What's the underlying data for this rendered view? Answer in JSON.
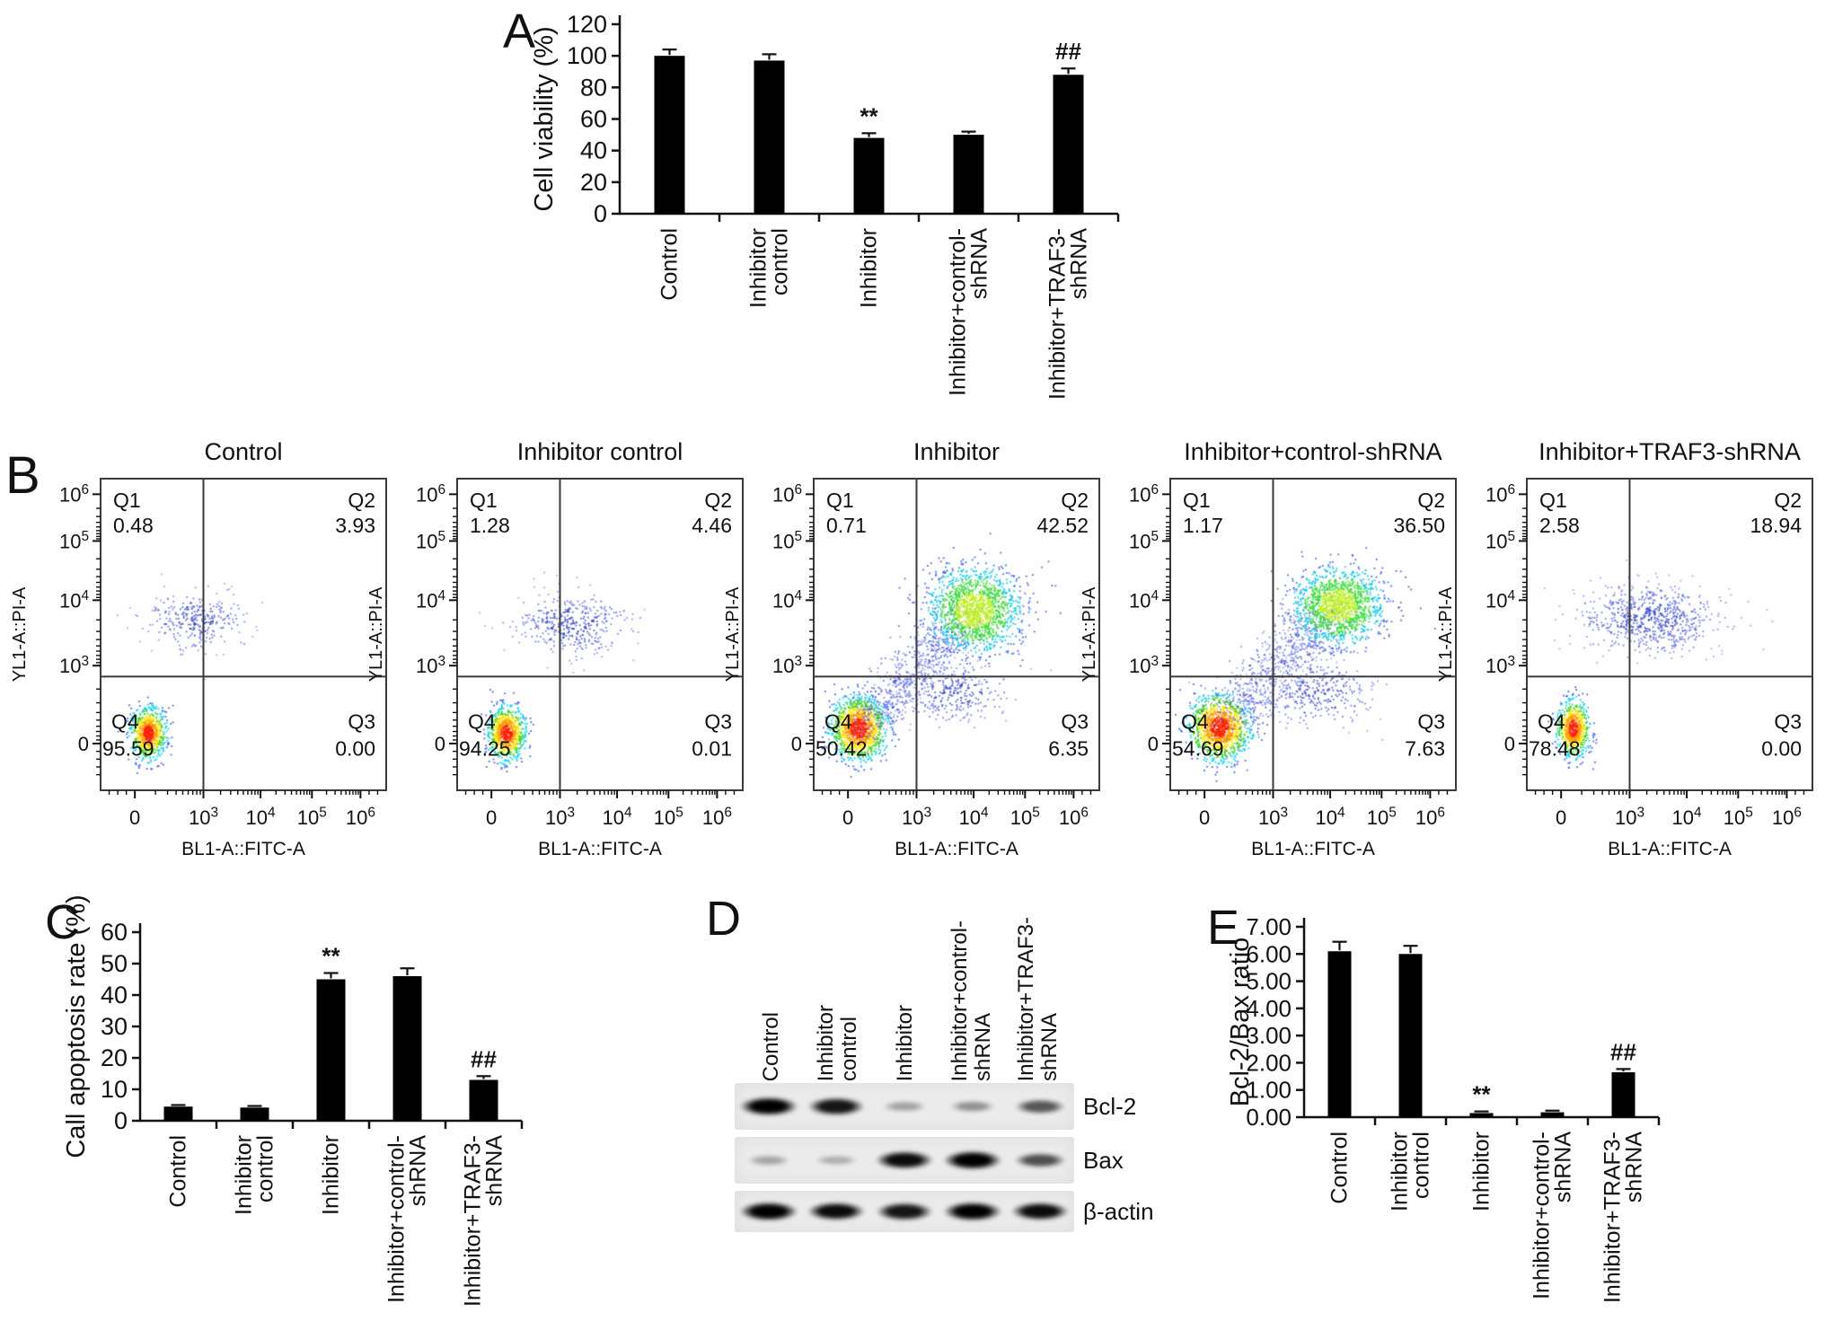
{
  "panel_letters": {
    "a": "A",
    "b": "B",
    "c": "C",
    "d": "D",
    "e": "E"
  },
  "groups": [
    "Control",
    "Inhibitor control",
    "Inhibitor",
    "Inhibitor+control-shRNA",
    "Inhibitor+TRAF3-shRNA"
  ],
  "group_label_lines": [
    [
      "Control"
    ],
    [
      "Inhibitor",
      "control"
    ],
    [
      "Inhibitor"
    ],
    [
      "Inhibitor+control-",
      "shRNA"
    ],
    [
      "Inhibitor+TRAF3-",
      "shRNA"
    ]
  ],
  "colors": {
    "bar_fill": "#000000",
    "axis": "#111111",
    "flow_frame": "#3a3a3a",
    "blot_strip_bg": "#ebebeb",
    "palette_hot": {
      "thresholds": [
        0.62,
        1.05,
        1.42,
        1.85,
        2.4,
        3.0
      ],
      "colors": [
        "#ff1e00",
        "#ff9c00",
        "#ffe400",
        "#43d41f",
        "#00cfe8",
        "#2f5bff",
        "#6050d8"
      ]
    },
    "palette_green": {
      "thresholds": [
        0.85,
        1.5,
        2.1,
        2.7
      ],
      "colors": [
        "#bdf01e",
        "#3bdc38",
        "#00c8e4",
        "#3a63f0",
        "#5c52d6"
      ]
    },
    "palette_blue": [
      "#2c3fc4",
      "#4d5cda",
      "#6d77e8",
      "#8d96ef"
    ]
  },
  "chart_data": [
    {
      "id": "A",
      "type": "bar",
      "title": "",
      "ylabel": "Cell viability (%)",
      "xlabel": "",
      "categories": [
        "Control",
        "Inhibitor control",
        "Inhibitor",
        "Inhibitor+control-shRNA",
        "Inhibitor+TRAF3-shRNA"
      ],
      "values": [
        100,
        97,
        48,
        50,
        88
      ],
      "errors": [
        4,
        4,
        3,
        2,
        4
      ],
      "annotations": [
        "",
        "",
        "**",
        "",
        "##"
      ],
      "ylim": [
        0,
        120
      ],
      "yticks": [
        0,
        20,
        40,
        60,
        80,
        100,
        120
      ],
      "grid": false,
      "legend": "none"
    },
    {
      "id": "B",
      "type": "scatter",
      "subtype": "flow-cytometry-density",
      "xlabel": "BL1-A::FITC-A",
      "ylabel": "YL1-A::PI-A",
      "xticks": [
        "0",
        "10^3",
        "10^4",
        "10^5",
        "10^6"
      ],
      "yticks": [
        "10^6",
        "10^5",
        "10^4",
        "10^3",
        "0"
      ],
      "plots": [
        {
          "title": "Control",
          "quadrants": {
            "Q1": "0.48",
            "Q2": "3.93",
            "Q3": "0.00",
            "Q4": "95.59"
          },
          "clusters": [
            {
              "t": "hot",
              "cx": 0.165,
              "cy": 0.815,
              "sx": 0.03,
              "sy": 0.04,
              "n": 800
            },
            {
              "t": "blue",
              "cx": 0.33,
              "cy": 0.45,
              "sx": 0.085,
              "sy": 0.048,
              "n": 300
            }
          ]
        },
        {
          "title": "Inhibitor control",
          "quadrants": {
            "Q1": "1.28",
            "Q2": "4.46",
            "Q3": "0.01",
            "Q4": "94.25"
          },
          "clusters": [
            {
              "t": "hot",
              "cx": 0.17,
              "cy": 0.815,
              "sx": 0.032,
              "sy": 0.042,
              "n": 800
            },
            {
              "t": "blue",
              "cx": 0.4,
              "cy": 0.465,
              "sx": 0.1,
              "sy": 0.05,
              "n": 400
            }
          ]
        },
        {
          "title": "Inhibitor",
          "quadrants": {
            "Q1": "0.71",
            "Q2": "42.52",
            "Q3": "6.35",
            "Q4": "50.42"
          },
          "clusters": [
            {
              "t": "hot",
              "cx": 0.155,
              "cy": 0.8,
              "sx": 0.048,
              "sy": 0.05,
              "n": 1200
            },
            {
              "t": "line-blue",
              "x1": 0.17,
              "y1": 0.79,
              "x2": 0.55,
              "y2": 0.43,
              "j": 0.045,
              "n": 800
            },
            {
              "t": "green",
              "cx": 0.56,
              "cy": 0.42,
              "sx": 0.08,
              "sy": 0.068,
              "n": 1500
            },
            {
              "t": "blue",
              "cx": 0.49,
              "cy": 0.69,
              "sx": 0.1,
              "sy": 0.045,
              "n": 280
            }
          ]
        },
        {
          "title": "Inhibitor+control-shRNA",
          "quadrants": {
            "Q1": "1.17",
            "Q2": "36.50",
            "Q3": "7.63",
            "Q4": "54.69"
          },
          "clusters": [
            {
              "t": "hot",
              "cx": 0.17,
              "cy": 0.795,
              "sx": 0.052,
              "sy": 0.052,
              "n": 1200
            },
            {
              "t": "line-blue",
              "x1": 0.19,
              "y1": 0.77,
              "x2": 0.58,
              "y2": 0.41,
              "j": 0.05,
              "n": 800
            },
            {
              "t": "green",
              "cx": 0.585,
              "cy": 0.405,
              "sx": 0.078,
              "sy": 0.062,
              "n": 1400
            },
            {
              "t": "blue",
              "cx": 0.52,
              "cy": 0.69,
              "sx": 0.1,
              "sy": 0.05,
              "n": 300
            }
          ]
        },
        {
          "title": "Inhibitor+TRAF3-shRNA",
          "quadrants": {
            "Q1": "2.58",
            "Q2": "18.94",
            "Q3": "0.00",
            "Q4": "78.48"
          },
          "clusters": [
            {
              "t": "hot",
              "cx": 0.16,
              "cy": 0.8,
              "sx": 0.028,
              "sy": 0.044,
              "n": 700
            },
            {
              "t": "blue",
              "cx": 0.43,
              "cy": 0.45,
              "sx": 0.12,
              "sy": 0.052,
              "n": 700
            }
          ]
        }
      ]
    },
    {
      "id": "C",
      "type": "bar",
      "title": "",
      "ylabel": "Call apoptosis rate (%)",
      "xlabel": "",
      "categories": [
        "Control",
        "Inhibitor control",
        "Inhibitor",
        "Inhibitor+control-shRNA",
        "Inhibitor+TRAF3-shRNA"
      ],
      "values": [
        4.5,
        4.2,
        45,
        46,
        13
      ],
      "errors": [
        0.5,
        0.5,
        2,
        2.5,
        1.2
      ],
      "annotations": [
        "",
        "",
        "**",
        "",
        "##"
      ],
      "ylim": [
        0,
        60
      ],
      "yticks": [
        0,
        10,
        20,
        30,
        40,
        50,
        60
      ],
      "grid": false,
      "legend": "none"
    },
    {
      "id": "D",
      "type": "blot",
      "lane_labels": [
        "Control",
        "Inhibitor control",
        "Inhibitor",
        "Inhibitor+control-shRNA",
        "Inhibitor+TRAF3-shRNA"
      ],
      "rows": [
        {
          "label": "Bcl-2",
          "intensities": [
            1.0,
            0.9,
            0.22,
            0.3,
            0.58
          ]
        },
        {
          "label": "Bax",
          "intensities": [
            0.2,
            0.16,
            0.95,
            1.0,
            0.62
          ]
        },
        {
          "label": "β-actin",
          "intensities": [
            1.0,
            0.95,
            0.9,
            1.0,
            0.95
          ]
        }
      ]
    },
    {
      "id": "E",
      "type": "bar",
      "title": "",
      "ylabel": "Bcl-2/Bax ratio",
      "xlabel": "",
      "categories": [
        "Control",
        "Inhibitor control",
        "Inhibitor",
        "Inhibitor+control-shRNA",
        "Inhibitor+TRAF3-shRNA"
      ],
      "values": [
        6.1,
        6.0,
        0.15,
        0.18,
        1.65
      ],
      "errors": [
        0.35,
        0.3,
        0.06,
        0.06,
        0.12
      ],
      "annotations": [
        "",
        "",
        "**",
        "",
        "##"
      ],
      "ylim": [
        0,
        7
      ],
      "yticks": [
        0,
        1,
        2,
        3,
        4,
        5,
        6,
        7
      ],
      "tick_decimals": 2,
      "grid": false,
      "legend": "none"
    }
  ]
}
